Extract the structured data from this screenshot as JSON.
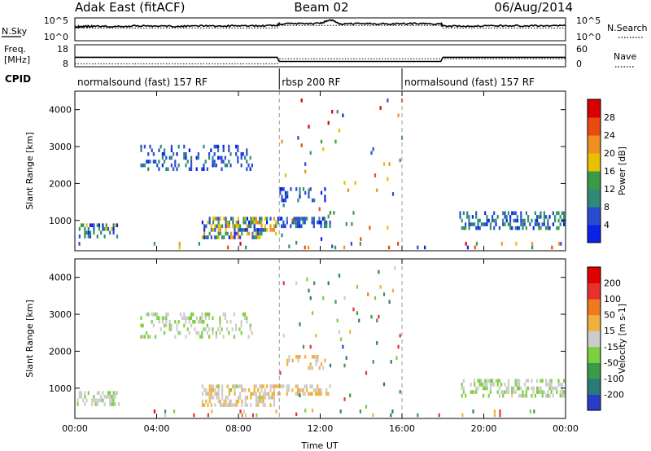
{
  "header": {
    "station": "Adak East (fitACF)",
    "beam": "Beam 02",
    "date": "06/Aug/2014"
  },
  "summary_panels": {
    "nsky_label": "N.Sky",
    "nsearch_label": "N.Search",
    "freq_label_line1": "Freq.",
    "freq_label_line2": "[MHz]",
    "nave_label": "Nave",
    "cpid_label": "CPID",
    "count_ticks": [
      "10^5",
      "10^0"
    ],
    "freq_ticks": [
      "18",
      "8"
    ],
    "nave_ticks": [
      "60",
      "0"
    ]
  },
  "cpid_segments": [
    {
      "start_hour": 0,
      "end_hour": 10,
      "label": "normalsound (fast) 157 RF"
    },
    {
      "start_hour": 10,
      "end_hour": 16,
      "label": "rbsp 200 RF"
    },
    {
      "start_hour": 16,
      "end_hour": 24,
      "label": "normalsound (fast) 157 RF"
    }
  ],
  "chart_data": [
    {
      "type": "line",
      "panel": "N.Sky / N.Search",
      "x": [
        0,
        0.5,
        1,
        2,
        3,
        4,
        5,
        6,
        7,
        8,
        9,
        9.9,
        10,
        11,
        12,
        12.5,
        13,
        14,
        15,
        16,
        17,
        17.9,
        18,
        19,
        20,
        21,
        22,
        23,
        24
      ],
      "series": [
        {
          "values": [
            4.2,
            4.4,
            4.4,
            4.4,
            4.5,
            4.5,
            4.4,
            4.5,
            4.5,
            4.6,
            4.6,
            4.6,
            5.2,
            5.3,
            5.3,
            6.4,
            5.2,
            5.2,
            5.2,
            5.2,
            5.2,
            5.2,
            4.5,
            4.5,
            4.6,
            4.6,
            4.6,
            4.6,
            4.6
          ]
        },
        {
          "values": [
            3.9,
            3.9,
            3.9,
            3.9,
            3.9,
            3.9,
            3.9,
            3.9,
            3.9,
            3.9,
            3.9,
            3.9,
            4.7,
            4.7,
            4.7,
            4.7,
            4.7,
            4.7,
            4.7,
            4.7,
            4.7,
            4.7,
            3.9,
            3.9,
            3.9,
            3.9,
            3.9,
            3.9,
            3.9
          ]
        }
      ],
      "ylim": [
        0,
        7
      ]
    },
    {
      "type": "line",
      "panel": "Freq. / Nave",
      "x": [
        0,
        2,
        4,
        6,
        8,
        9.9,
        10,
        12,
        14,
        16,
        17.9,
        18,
        20,
        22,
        24
      ],
      "series": [
        {
          "values": [
            12.3,
            12.3,
            12.3,
            12.3,
            12.3,
            12.3,
            10.4,
            10.4,
            10.4,
            10.4,
            10.4,
            12.3,
            12.3,
            12.3,
            12.3
          ]
        },
        {
          "values": [
            8,
            8,
            8,
            8,
            8,
            8,
            22,
            22,
            22,
            22,
            22,
            22,
            22,
            22,
            22
          ]
        }
      ],
      "freq_ylim": [
        8,
        18
      ],
      "nave_ylim": [
        0,
        60
      ]
    },
    {
      "type": "heatmap",
      "panel": "Power",
      "xlabel": "",
      "ylabel": "Slant Range [km]",
      "xlim": [
        0,
        24
      ],
      "ylim": [
        180,
        4500
      ],
      "x_ticks": [
        "00:00",
        "04:00",
        "08:00",
        "12:00",
        "16:00",
        "20:00",
        "00:00"
      ],
      "y_ticks": [
        1000,
        2000,
        3000,
        4000
      ],
      "colorbar": {
        "label": "Power [dB]",
        "ticks": [
          4,
          8,
          12,
          16,
          20,
          24,
          28
        ],
        "range": [
          0,
          32
        ],
        "colors": [
          "#0a22e6",
          "#2a4cd2",
          "#2f8a78",
          "#3a9a4a",
          "#e8c000",
          "#f09020",
          "#e84a10",
          "#d80000"
        ]
      },
      "scatter_regions": [
        {
          "start": 0.1,
          "end": 2.2,
          "range_min": 520,
          "range_max": 920,
          "density": 0.45,
          "color_range": [
            2,
            18
          ]
        },
        {
          "start": 3.2,
          "end": 8.7,
          "range_min": 2300,
          "range_max": 3050,
          "density": 0.28,
          "color_range": [
            3,
            10
          ]
        },
        {
          "start": 6.2,
          "end": 9.9,
          "range_min": 520,
          "range_max": 1100,
          "density": 0.5,
          "color_range": [
            2,
            24
          ]
        },
        {
          "start": 9.9,
          "end": 12.5,
          "range_min": 750,
          "range_max": 1100,
          "density": 0.55,
          "color_range": [
            2,
            12
          ]
        },
        {
          "start": 10,
          "end": 12.3,
          "range_min": 1500,
          "range_max": 1900,
          "density": 0.25,
          "color_range": [
            2,
            10
          ]
        },
        {
          "start": 10,
          "end": 16,
          "range_min": 200,
          "range_max": 4300,
          "density": 0.02,
          "color_range": [
            2,
            30
          ]
        },
        {
          "start": 18.8,
          "end": 24,
          "range_min": 700,
          "range_max": 1250,
          "density": 0.42,
          "color_range": [
            2,
            14
          ]
        },
        {
          "start": 0,
          "end": 24,
          "range_min": 200,
          "range_max": 420,
          "density": 0.06,
          "color_range": [
            2,
            30
          ]
        }
      ]
    },
    {
      "type": "heatmap",
      "panel": "Velocity",
      "xlabel": "Time UT",
      "ylabel": "Slant Range [km]",
      "xlim": [
        0,
        24
      ],
      "ylim": [
        180,
        4500
      ],
      "x_ticks": [
        "00:00",
        "04:00",
        "08:00",
        "12:00",
        "16:00",
        "20:00",
        "00:00"
      ],
      "y_ticks": [
        1000,
        2000,
        3000,
        4000
      ],
      "colorbar": {
        "label": "Velocity [m s-1]",
        "ticks": [
          200,
          100,
          50,
          15,
          -15,
          -50,
          -100,
          -200
        ],
        "range": [
          -250,
          250
        ],
        "colors": [
          "#2a3cc8",
          "#2a7a78",
          "#3a9a4a",
          "#7cd040",
          "#cccccc",
          "#f0b040",
          "#f07a20",
          "#e83030",
          "#e00000"
        ]
      },
      "scatter_regions": [
        {
          "start": 0.1,
          "end": 2.2,
          "range_min": 520,
          "range_max": 920,
          "density": 0.45,
          "color_range": [
            -40,
            10
          ]
        },
        {
          "start": 3.2,
          "end": 8.7,
          "range_min": 2300,
          "range_max": 3050,
          "density": 0.28,
          "color_range": [
            -60,
            10
          ]
        },
        {
          "start": 6.2,
          "end": 9.9,
          "range_min": 520,
          "range_max": 1100,
          "density": 0.5,
          "color_range": [
            -30,
            60
          ]
        },
        {
          "start": 9.9,
          "end": 12.5,
          "range_min": 750,
          "range_max": 1100,
          "density": 0.55,
          "color_range": [
            10,
            60
          ]
        },
        {
          "start": 10,
          "end": 12.3,
          "range_min": 1500,
          "range_max": 1900,
          "density": 0.25,
          "color_range": [
            10,
            70
          ]
        },
        {
          "start": 10,
          "end": 16,
          "range_min": 200,
          "range_max": 4300,
          "density": 0.02,
          "color_range": [
            -200,
            200
          ]
        },
        {
          "start": 18.8,
          "end": 24,
          "range_min": 700,
          "range_max": 1250,
          "density": 0.42,
          "color_range": [
            -60,
            15
          ]
        },
        {
          "start": 0,
          "end": 24,
          "range_min": 200,
          "range_max": 420,
          "density": 0.06,
          "color_range": [
            -200,
            200
          ]
        }
      ]
    }
  ]
}
